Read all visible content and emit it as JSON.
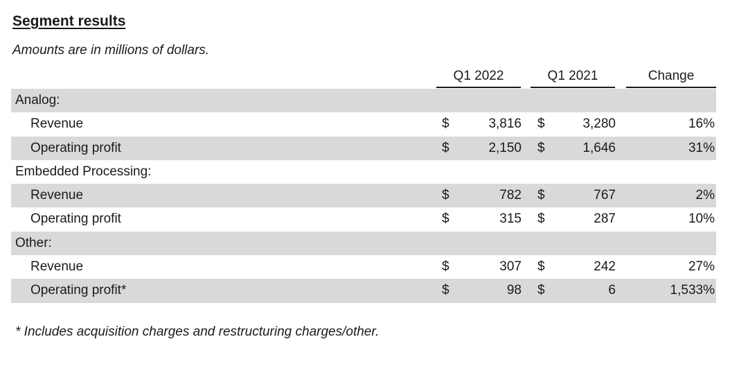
{
  "title": "Segment results",
  "subtitle": "Amounts are in millions of dollars.",
  "columns": [
    "Q1 2022",
    "Q1 2021",
    "Change"
  ],
  "rows": [
    {
      "type": "header",
      "label": "Analog:"
    },
    {
      "type": "item",
      "label": "Revenue",
      "cur1": "$",
      "v1": "3,816",
      "cur2": "$",
      "v2": "3,280",
      "change": "16%"
    },
    {
      "type": "item",
      "label": "Operating profit",
      "cur1": "$",
      "v1": "2,150",
      "cur2": "$",
      "v2": "1,646",
      "change": "31%"
    },
    {
      "type": "header",
      "label": "Embedded Processing:"
    },
    {
      "type": "item",
      "label": "Revenue",
      "cur1": "$",
      "v1": "782",
      "cur2": "$",
      "v2": "767",
      "change": "2%"
    },
    {
      "type": "item",
      "label": "Operating profit",
      "cur1": "$",
      "v1": "315",
      "cur2": "$",
      "v2": "287",
      "change": "10%"
    },
    {
      "type": "header",
      "label": "Other:"
    },
    {
      "type": "item",
      "label": "Revenue",
      "cur1": "$",
      "v1": "307",
      "cur2": "$",
      "v2": "242",
      "change": "27%"
    },
    {
      "type": "item",
      "label": "Operating profit*",
      "cur1": "$",
      "v1": "98",
      "cur2": "$",
      "v2": "6",
      "change": "1,533%"
    }
  ],
  "footnote": "* Includes acquisition charges and restructuring charges/other.",
  "colors": {
    "shade": "#d9d9d9",
    "text": "#1a1a1a"
  }
}
